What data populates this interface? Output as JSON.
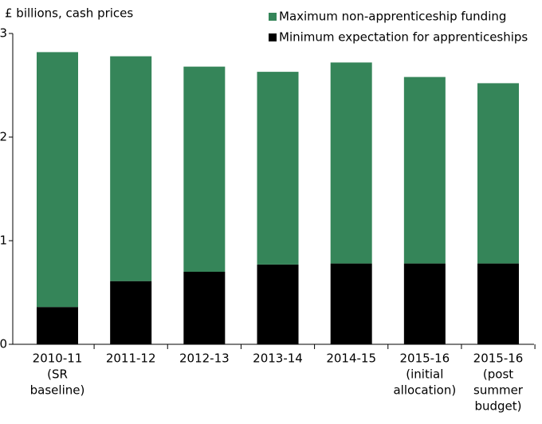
{
  "chart_data": {
    "type": "stacked_bar",
    "axis_label": "£ billions, cash prices",
    "categories": [
      [
        "2010-11",
        "(SR",
        "baseline)"
      ],
      [
        "2011-12"
      ],
      [
        "2012-13"
      ],
      [
        "2013-14"
      ],
      [
        "2014-15"
      ],
      [
        "2015-16",
        "(initial",
        "allocation)"
      ],
      [
        "2015-16",
        "(post",
        "summer",
        "budget)"
      ]
    ],
    "series": [
      {
        "name": "Minimum expectation for apprenticeships",
        "color": "#000000",
        "values": [
          0.36,
          0.61,
          0.7,
          0.77,
          0.78,
          0.78,
          0.78
        ]
      },
      {
        "name": "Maximum non-apprenticeship funding",
        "color": "#358559",
        "values": [
          2.46,
          2.17,
          1.98,
          1.86,
          1.94,
          1.8,
          1.74
        ]
      }
    ],
    "ylim": [
      0,
      3
    ],
    "yticks": [
      0,
      1,
      2,
      3
    ]
  }
}
